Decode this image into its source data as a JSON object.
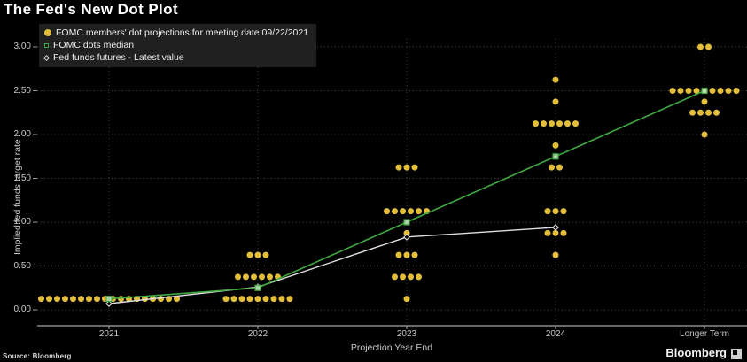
{
  "title": "The Fed's New Dot Plot",
  "footer": {
    "source": "Source: Bloomberg",
    "brand": "Bloomberg"
  },
  "chart_data": {
    "type": "scatter",
    "title": "The Fed's New Dot Plot",
    "xlabel": "Projection Year End",
    "ylabel": "Implied fed funds target rate",
    "categories": [
      "2021",
      "2022",
      "2023",
      "2024",
      "Longer Term"
    ],
    "y_ticks": [
      0.0,
      0.5,
      1.0,
      1.5,
      2.0,
      2.5,
      3.0
    ],
    "y_tick_labels": [
      "0.00",
      "0.50",
      "1.00",
      "1.50",
      "2.00",
      "2.50",
      "3.00"
    ],
    "ylim": [
      0,
      3.25
    ],
    "grid": "dotted horizontal and vertical",
    "background": "#000000",
    "legend_position": "top-left",
    "legend": [
      {
        "label": "FOMC members' dot projections for meeting date 09/22/2021",
        "marker": "circle",
        "color": "#e2be3b"
      },
      {
        "label": "FOMC dots median",
        "marker": "square",
        "color": "#3fa83f"
      },
      {
        "label": "Fed funds futures - Latest value",
        "marker": "diamond",
        "color": "#e0e0e0"
      }
    ],
    "dot_color": "#e2be3b",
    "median_color": "#3fa83f",
    "futures_color": "#e0e0e0",
    "dot_projections": {
      "2021": [
        {
          "rate": 0.125,
          "count": 18
        }
      ],
      "2022": [
        {
          "rate": 0.125,
          "count": 9
        },
        {
          "rate": 0.375,
          "count": 6
        },
        {
          "rate": 0.625,
          "count": 3
        }
      ],
      "2023": [
        {
          "rate": 0.125,
          "count": 1
        },
        {
          "rate": 0.375,
          "count": 4
        },
        {
          "rate": 0.625,
          "count": 3
        },
        {
          "rate": 0.875,
          "count": 1
        },
        {
          "rate": 1.125,
          "count": 6
        },
        {
          "rate": 1.625,
          "count": 3
        }
      ],
      "2024": [
        {
          "rate": 0.625,
          "count": 1
        },
        {
          "rate": 0.875,
          "count": 3
        },
        {
          "rate": 1.125,
          "count": 3
        },
        {
          "rate": 1.625,
          "count": 2
        },
        {
          "rate": 1.875,
          "count": 1
        },
        {
          "rate": 2.125,
          "count": 6
        },
        {
          "rate": 2.375,
          "count": 1
        },
        {
          "rate": 2.625,
          "count": 1
        }
      ],
      "Longer Term": [
        {
          "rate": 2.0,
          "count": 1
        },
        {
          "rate": 2.25,
          "count": 4
        },
        {
          "rate": 2.375,
          "count": 1
        },
        {
          "rate": 2.5,
          "count": 9
        },
        {
          "rate": 3.0,
          "count": 2
        }
      ]
    },
    "series": [
      {
        "name": "FOMC dots median",
        "values": [
          0.125,
          0.25,
          1.0,
          1.75,
          2.5
        ],
        "color": "#3fa83f"
      },
      {
        "name": "Fed funds futures - Latest value",
        "values": [
          0.07,
          0.26,
          0.83,
          0.94,
          null
        ],
        "color": "#e0e0e0"
      }
    ]
  }
}
